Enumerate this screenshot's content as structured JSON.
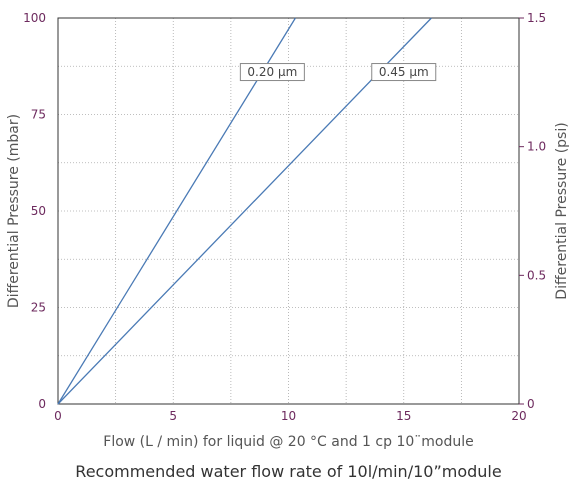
{
  "chart_data": {
    "type": "line",
    "xlabel": "Flow (L / min) for liquid @ 20 °C and 1 cp 10¨module",
    "ylabel": "Differential Pressure (mbar)",
    "ylabel_right": "Differential Pressure (psi)",
    "caption": "Recommended water flow rate of 10l/min/10”module",
    "xlim": [
      0,
      20
    ],
    "ylim": [
      0,
      100
    ],
    "ylim_right": [
      0,
      1.5
    ],
    "x_ticks": [
      0,
      5,
      10,
      15,
      20
    ],
    "y_ticks": [
      0,
      25,
      50,
      75,
      100
    ],
    "y_ticks_right": [
      "0",
      "0.5",
      "1.0",
      "1.5"
    ],
    "grid": true,
    "series": [
      {
        "name": "0.20 µm",
        "x": [
          0,
          10.3
        ],
        "y": [
          0,
          100
        ],
        "label_at": [
          9.3,
          86
        ]
      },
      {
        "name": "0.45 µm",
        "x": [
          0,
          16.2
        ],
        "y": [
          0,
          100
        ],
        "label_at": [
          15.0,
          86
        ]
      }
    ],
    "colors": {
      "line": "#4a7ab5",
      "tick": "#6d2a5e",
      "grid": "#aaaaaa"
    }
  }
}
